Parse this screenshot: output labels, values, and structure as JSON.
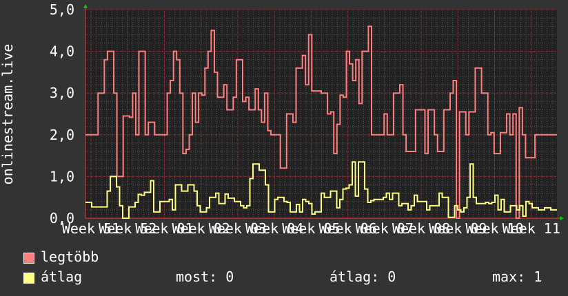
{
  "chart_data": {
    "type": "line",
    "ylabel": "onlinestream.live",
    "ylim": [
      0,
      5
    ],
    "y_ticks": [
      "0,0",
      "1,0",
      "2,0",
      "3,0",
      "4,0",
      "5,0"
    ],
    "x_tick_labels": [
      "Week 51",
      "Week 52",
      "Week 01",
      "Week 02",
      "Week 03",
      "Week 04",
      "Week 05",
      "Week 06",
      "Week 07",
      "Week 08",
      "Week 09",
      "Week 10",
      "Week 11"
    ],
    "grid": true,
    "colors": {
      "background": "#333333",
      "plot_bg": "#222222",
      "grid": "#555555",
      "max_grid": "#7a3333",
      "series_max": "#ff7f7f",
      "series_avg": "#ffff7f",
      "axis": "#ff3333",
      "arrow": "#00cc00"
    },
    "series": [
      {
        "name": "legtöbb",
        "values": [
          2,
          2,
          2,
          2,
          3,
          3,
          3.8,
          4,
          4,
          3,
          1,
          1,
          2.45,
          2.45,
          2.42,
          3,
          2,
          4,
          4,
          2,
          2.3,
          2.3,
          2,
          2,
          2,
          2,
          3,
          3.3,
          4,
          3.8,
          3,
          1.55,
          1.65,
          2,
          3,
          2.3,
          3,
          2.95,
          3.6,
          4,
          4.5,
          3.5,
          2.9,
          2.9,
          3.2,
          2.6,
          2.6,
          2.9,
          3.8,
          3.8,
          2.8,
          2.9,
          2.6,
          2.6,
          3.1,
          2.6,
          2.3,
          3,
          2.1,
          2,
          2,
          2,
          1.2,
          1.2,
          2.5,
          2.5,
          2.3,
          3.6,
          3.6,
          3.9,
          3.2,
          4.4,
          3.05,
          3.05,
          3.05,
          3,
          3,
          2.5,
          2.55,
          1.55,
          2.25,
          2.95,
          2.9,
          4,
          3.7,
          3.3,
          3.8,
          2.75,
          4,
          4,
          4.6,
          2,
          2,
          2,
          2,
          2.5,
          2,
          2,
          3,
          3,
          3.2,
          2,
          1.6,
          1.6,
          1.6,
          2.6,
          2.6,
          2.6,
          1.55,
          2.6,
          2.6,
          2,
          1.6,
          1.6,
          2.6,
          2.6,
          3,
          3.3,
          0,
          2.55,
          2.55,
          2,
          2.55,
          2.55,
          3.6,
          3.6,
          3,
          3,
          2,
          2.05,
          1.55,
          1.55,
          2.05,
          2.05,
          2.5,
          2,
          2.5,
          0,
          2.65,
          2,
          1.45,
          1.45,
          1.45,
          2,
          2,
          2,
          2,
          2,
          2,
          2
        ],
        "color_key": "series_max"
      },
      {
        "name": "átlag",
        "values": [
          0.38,
          0.38,
          0.27,
          0.27,
          0.27,
          0.27,
          0.27,
          0.65,
          1,
          1,
          0.75,
          0.3,
          0,
          0,
          0.27,
          0.27,
          0.38,
          0.57,
          0.55,
          0.62,
          0.62,
          0.9,
          0.15,
          0.15,
          0.4,
          0.4,
          0.4,
          0.45,
          0.2,
          0.8,
          0.8,
          0.65,
          0.65,
          0.8,
          0.8,
          0.65,
          0.3,
          0.15,
          0.15,
          0.25,
          0.5,
          0.5,
          0.6,
          0.35,
          0.35,
          0.58,
          0.48,
          0.48,
          0.4,
          0.4,
          0.3,
          0.25,
          0.3,
          0.95,
          1.3,
          1.3,
          1.15,
          1.15,
          0.8,
          0.15,
          0.15,
          0.45,
          0.5,
          0.5,
          0.4,
          0.38,
          0.15,
          0.15,
          0.33,
          0.15,
          0.45,
          0.4,
          0.35,
          0.1,
          0.15,
          0.15,
          0.6,
          0.5,
          0.5,
          0.65,
          0.65,
          0.25,
          0.45,
          0.7,
          0.72,
          0.8,
          1.35,
          0.53,
          1.35,
          1.35,
          0.7,
          0.38,
          0.42,
          0.45,
          0.45,
          0.45,
          0.5,
          0.6,
          0.45,
          0.6,
          0.6,
          0.3,
          0.35,
          0.35,
          0.2,
          0.3,
          0.55,
          0.4,
          0.4,
          0.4,
          0.2,
          0.3,
          0.3,
          0.3,
          0.6,
          0.5,
          0.5,
          0.02,
          0.02,
          0.3,
          0.2,
          0.15,
          0.25,
          0.5,
          1.3,
          0.5,
          0.35,
          0.35,
          0.35,
          0.38,
          0.35,
          0.38,
          0.55,
          0.2,
          0.45,
          0.15,
          0.15,
          0.3,
          0.3,
          0.2,
          0.3,
          0.05,
          0.4,
          0.35,
          0.25,
          0.25,
          0.2,
          0.2,
          0.25,
          0.25,
          0.2,
          0.2
        ],
        "color_key": "series_avg"
      }
    ]
  },
  "legend": {
    "items": [
      {
        "label": "legtöbb",
        "color": "#ff7f7f"
      },
      {
        "label": "átlag",
        "color": "#ffff7f"
      }
    ],
    "stats": {
      "now": "most: 0",
      "avg": "átlag: 0",
      "max": "max: 1"
    }
  }
}
